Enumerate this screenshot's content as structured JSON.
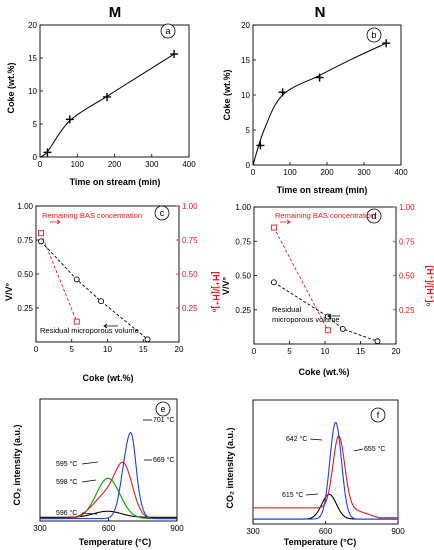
{
  "columns": {
    "left": "M",
    "right": "N"
  },
  "chart_data": [
    {
      "id": "a",
      "panel_label": "a",
      "type": "line",
      "xlabel": "Time on stream (min)",
      "ylabel": "Coke (wt.%)",
      "xlim": [
        0,
        400
      ],
      "ylim": [
        0,
        20
      ],
      "xticks": [
        0,
        100,
        200,
        300,
        400
      ],
      "yticks": [
        0,
        5,
        10,
        15,
        20
      ],
      "grid": false,
      "series": [
        {
          "points": [
            [
              20,
              0.7
            ],
            [
              80,
              5.7
            ],
            [
              180,
              9.1
            ],
            [
              360,
              15.6
            ]
          ],
          "color": "#000000",
          "marker": "plus",
          "fit": [
            [
              0,
              0
            ],
            [
              20,
              0.8
            ],
            [
              80,
              5.5
            ],
            [
              180,
              9.2
            ],
            [
              270,
              12.4
            ],
            [
              360,
              15.6
            ]
          ]
        }
      ]
    },
    {
      "id": "b",
      "panel_label": "b",
      "type": "line",
      "xlabel": "Time on stream (min)",
      "ylabel": "Coke (wt.%)",
      "xlim": [
        0,
        400
      ],
      "ylim": [
        0,
        20
      ],
      "xticks": [
        0,
        100,
        200,
        300,
        400
      ],
      "yticks": [
        0,
        5,
        10,
        15,
        20
      ],
      "grid": false,
      "series": [
        {
          "points": [
            [
              20,
              2.8
            ],
            [
              80,
              10.4
            ],
            [
              180,
              12.5
            ],
            [
              360,
              17.4
            ]
          ],
          "color": "#000000",
          "marker": "plus",
          "fit": [
            [
              0,
              0
            ],
            [
              30,
              5.0
            ],
            [
              80,
              10.0
            ],
            [
              180,
              12.8
            ],
            [
              270,
              15.2
            ],
            [
              360,
              17.4
            ]
          ]
        }
      ]
    },
    {
      "id": "c",
      "panel_label": "c",
      "type": "scatter",
      "xlabel": "Coke (wt.%)",
      "ylabel": "V/V°",
      "y2label": "[H⁺]/[H⁺]₀",
      "xlim": [
        0,
        20
      ],
      "ylim": [
        0,
        1
      ],
      "y2lim": [
        0,
        1
      ],
      "xticks": [
        0,
        5,
        10,
        15,
        20
      ],
      "yticks": [
        0.25,
        0.5,
        0.75,
        1.0
      ],
      "ytick_labels": [
        "0.25",
        "0.50",
        "0.75",
        "1.00"
      ],
      "y2ticks": [
        0.25,
        0.5,
        0.75,
        1.0
      ],
      "y2tick_labels": [
        "0.25",
        "0.50",
        "0.75",
        "1.00"
      ],
      "grid": false,
      "series": [
        {
          "name": "Residual microporous volume",
          "axis": "left",
          "color": "#000000",
          "marker": "circle",
          "points": [
            [
              0.7,
              0.74
            ],
            [
              5.7,
              0.46
            ],
            [
              9.1,
              0.3
            ],
            [
              15.6,
              0.02
            ]
          ]
        },
        {
          "name": "Remaining BAS concentration",
          "axis": "right",
          "color": "#e41a1c",
          "marker": "square",
          "points": [
            [
              0.7,
              0.8
            ],
            [
              5.7,
              0.15
            ]
          ]
        }
      ],
      "annotations": [
        {
          "text": "Remaining BAS concentration",
          "color": "#e41a1c"
        },
        {
          "text": "Residual microporous volume",
          "color": "#000000"
        }
      ]
    },
    {
      "id": "d",
      "panel_label": "d",
      "type": "scatter",
      "xlabel": "Coke (wt.%)",
      "ylabel": "V/V°",
      "y2label": "[H⁺]/[H⁺]₀",
      "xlim": [
        0,
        20
      ],
      "ylim": [
        0,
        1
      ],
      "y2lim": [
        0,
        1
      ],
      "xticks": [
        0,
        5,
        10,
        15,
        20
      ],
      "yticks": [
        0.25,
        0.5,
        0.75,
        1.0
      ],
      "ytick_labels": [
        "0.25",
        "0.50",
        "0.75",
        "1.00"
      ],
      "y2ticks": [
        0.25,
        0.5,
        0.75,
        1.0
      ],
      "y2tick_labels": [
        "0.25",
        "0.50",
        "0.75",
        "1.00"
      ],
      "grid": false,
      "series": [
        {
          "name": "Residual microporous volume",
          "axis": "left",
          "color": "#000000",
          "marker": "circle",
          "points": [
            [
              2.8,
              0.45
            ],
            [
              10.4,
              0.2
            ],
            [
              12.5,
              0.11
            ],
            [
              17.4,
              0.02
            ]
          ]
        },
        {
          "name": "Remaining BAS concentration",
          "axis": "right",
          "color": "#e41a1c",
          "marker": "square",
          "points": [
            [
              2.8,
              0.85
            ],
            [
              10.4,
              0.1
            ]
          ]
        }
      ],
      "annotations": [
        {
          "text": "Remaining BAS concentration",
          "color": "#e41a1c"
        },
        {
          "text": "Residual microporous volume",
          "color": "#000000",
          "lines": [
            "Residual",
            "microporous volume"
          ]
        }
      ]
    },
    {
      "id": "e",
      "panel_label": "e",
      "type": "line",
      "xlabel": "Temperature (°C)",
      "ylabel": "CO₂ intensity (a.u.)",
      "xlim": [
        300,
        900
      ],
      "ylim": [
        0,
        1
      ],
      "xticks": [
        300,
        600,
        900
      ],
      "yticks": [],
      "grid": false,
      "series": [
        {
          "color": "#000000",
          "baseline": 0.03,
          "peaks": [
            [
              596,
              0.05,
              60
            ]
          ]
        },
        {
          "color": "#00a000",
          "baseline": 0.02,
          "peaks": [
            [
              598,
              0.33,
              52
            ]
          ]
        },
        {
          "color": "#e41a1c",
          "baseline": 0.02,
          "peaks": [
            [
              595,
              0.2,
              60
            ],
            [
              669,
              0.36,
              38
            ]
          ]
        },
        {
          "color": "#1f3fe0",
          "baseline": 0.02,
          "peaks": [
            [
              690,
              0.62,
              30
            ],
            [
              705,
              0.12,
              14
            ]
          ]
        }
      ],
      "annotations": [
        {
          "text": "701 °C",
          "x": 701
        },
        {
          "text": "669 °C",
          "x": 669
        },
        {
          "text": "595 °C",
          "x": 595
        },
        {
          "text": "598 °C",
          "x": 598
        },
        {
          "text": "596 °C",
          "x": 596
        }
      ]
    },
    {
      "id": "f",
      "panel_label": "f",
      "type": "line",
      "xlabel": "Temperature (°C)",
      "ylabel": "CO₂ intensity (a.u.)",
      "xlim": [
        300,
        900
      ],
      "ylim": [
        0,
        1
      ],
      "xticks": [
        300,
        600,
        900
      ],
      "yticks": [],
      "grid": false,
      "series": [
        {
          "color": "#000000",
          "baseline": 0.04,
          "peaks": [
            [
              615,
              0.2,
              30
            ]
          ]
        },
        {
          "color": "#e41a1c",
          "baseline": 0.13,
          "tail": 0.05,
          "peaks": [
            [
              655,
              0.58,
              24
            ]
          ]
        },
        {
          "color": "#1f3fe0",
          "baseline": 0.04,
          "peaks": [
            [
              642,
              0.78,
              24
            ]
          ]
        }
      ],
      "annotations": [
        {
          "text": "642 °C",
          "x": 642
        },
        {
          "text": "655 °C",
          "x": 655
        },
        {
          "text": "615 °C",
          "x": 615
        }
      ]
    }
  ]
}
